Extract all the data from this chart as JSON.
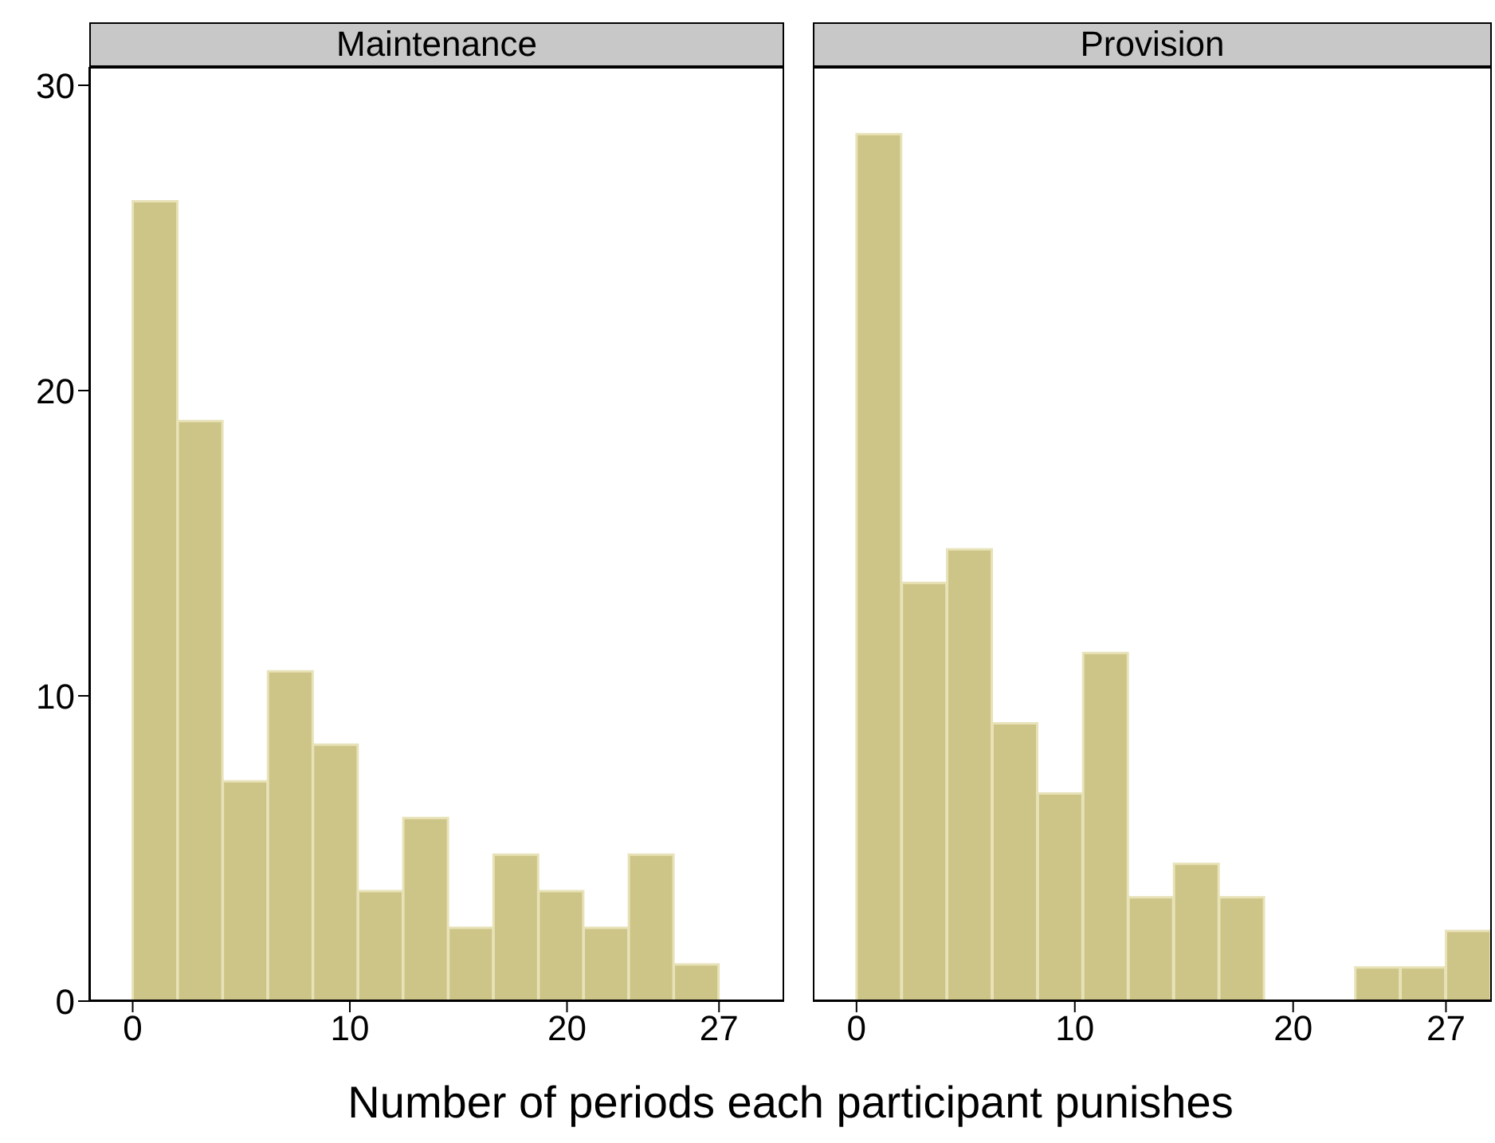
{
  "chart_data": [
    {
      "type": "histogram",
      "title": "Maintenance",
      "xlabel": "Number of periods each participant punishes",
      "bins": [
        0,
        2.08,
        4.15,
        6.23,
        8.31,
        10.38,
        12.46,
        14.54,
        16.62,
        18.69,
        20.77,
        22.85,
        24.92,
        27
      ],
      "values": [
        26.2,
        19.0,
        7.2,
        10.8,
        8.4,
        3.6,
        6.0,
        2.4,
        4.8,
        3.6,
        2.4,
        4.8,
        1.2
      ],
      "color": "#cdc487",
      "xlim": [
        -2,
        30
      ],
      "xticks": [
        0,
        10,
        20,
        27
      ],
      "ylim": [
        0,
        30.6
      ],
      "yticks": [
        0,
        10,
        20,
        30
      ],
      "grid": false
    },
    {
      "type": "histogram",
      "title": "Provision",
      "bins": [
        0,
        2.08,
        4.15,
        6.23,
        8.31,
        10.38,
        12.46,
        14.54,
        16.62,
        18.69,
        20.77,
        22.85,
        24.92,
        27,
        29.08
      ],
      "values": [
        28.4,
        13.7,
        14.8,
        9.1,
        6.8,
        11.4,
        3.4,
        4.5,
        3.4,
        0,
        0,
        1.1,
        1.1,
        2.3
      ],
      "color": "#cdc487",
      "xlim": [
        -2,
        29.1
      ],
      "xticks": [
        0,
        10,
        20,
        27
      ],
      "ylim": [
        0,
        30.6
      ],
      "yticks": [
        0,
        10,
        20,
        30
      ],
      "grid": false,
      "tick_labels": "x"
    }
  ]
}
